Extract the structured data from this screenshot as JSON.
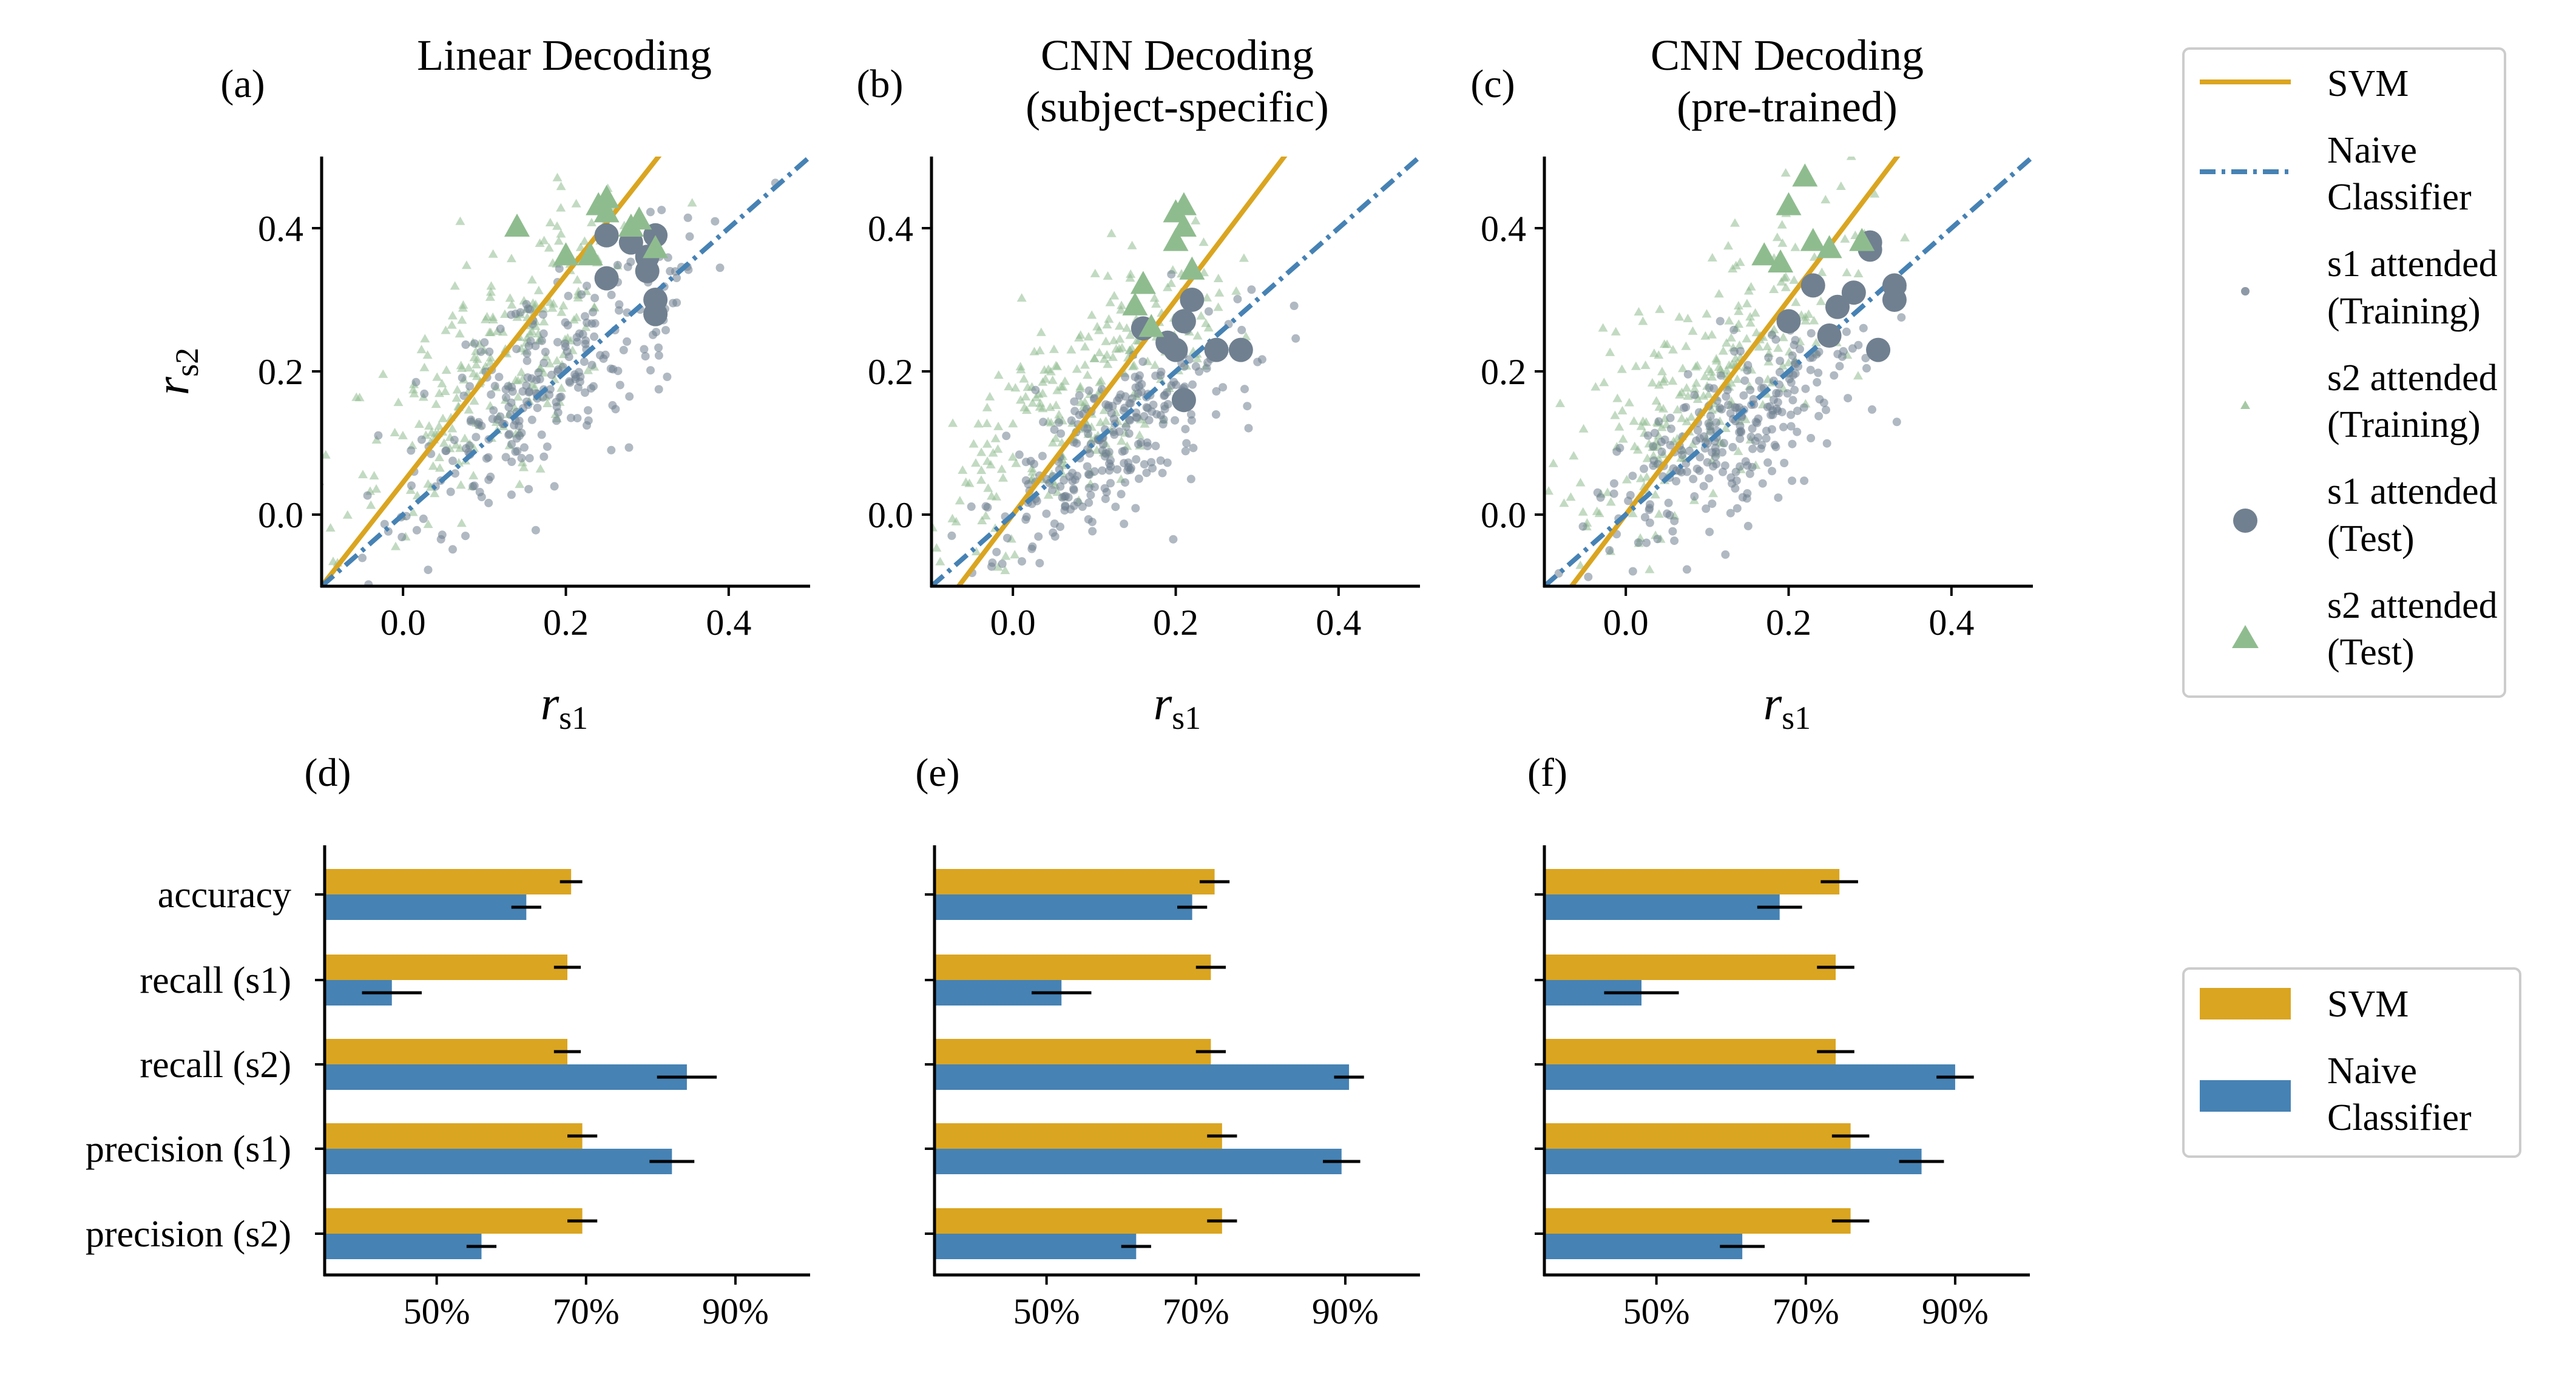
{
  "colors": {
    "svm": "#DAA520",
    "naive": "#4682B4",
    "s1_point": "#708090",
    "s2_point": "#8FBC8F",
    "axis": "#000000"
  },
  "scatter_axes": {
    "xlabel_main": "r",
    "xlabel_sub": "s1",
    "ylabel_main": "r",
    "ylabel_sub": "s2",
    "xlim": [
      -0.1,
      0.5
    ],
    "ylim": [
      -0.1,
      0.5
    ],
    "xticks": [
      "0.0",
      "0.2",
      "0.4"
    ],
    "yticks": [
      "0.0",
      "0.2",
      "0.4"
    ]
  },
  "bar_axes": {
    "categories": [
      "accuracy",
      "recall (s1)",
      "recall (s2)",
      "precision (s1)",
      "precision (s2)"
    ],
    "xticks": [
      "50%",
      "70%",
      "90%"
    ],
    "xlim": [
      0.35,
      1.0
    ]
  },
  "panels": [
    {
      "label": "(a)",
      "title_line1": "Linear Decoding",
      "title_line2": ""
    },
    {
      "label": "(b)",
      "title_line1": "CNN Decoding",
      "title_line2": "(subject-specific)"
    },
    {
      "label": "(c)",
      "title_line1": "CNN Decoding",
      "title_line2": "(pre-trained)"
    },
    {
      "label": "(d)"
    },
    {
      "label": "(e)"
    },
    {
      "label": "(f)"
    }
  ],
  "legend_scatter": [
    {
      "type": "line-solid",
      "line1": "SVM",
      "line2": ""
    },
    {
      "type": "line-dashdot",
      "line1": "Naive",
      "line2": "Classifier"
    },
    {
      "type": "s1-train",
      "line1": "s1 attended",
      "line2": "(Training)"
    },
    {
      "type": "s2-train",
      "line1": "s2 attended",
      "line2": "(Training)"
    },
    {
      "type": "s1-test",
      "line1": "s1 attended",
      "line2": "(Test)"
    },
    {
      "type": "s2-test",
      "line1": "s2 attended",
      "line2": "(Test)"
    }
  ],
  "legend_bar": [
    {
      "type": "svm",
      "line1": "SVM",
      "line2": ""
    },
    {
      "type": "naive",
      "line1": "Naive",
      "line2": "Classifier"
    }
  ],
  "chart_data": [
    {
      "type": "scatter",
      "panel": "(a)",
      "svm_line": {
        "slope": 1.45,
        "intercept": 0.045
      },
      "naive_line": {
        "slope": 1.0,
        "intercept": 0.0
      },
      "training_clouds": {
        "s1": {
          "count": 260,
          "center": [
            0.17,
            0.18
          ],
          "spread": [
            0.09,
            0.1
          ],
          "corr": 0.75
        },
        "s2": {
          "count": 260,
          "center": [
            0.12,
            0.22
          ],
          "spread": [
            0.09,
            0.12
          ],
          "corr": 0.75
        }
      },
      "test_s1": [
        [
          0.25,
          0.33
        ],
        [
          0.25,
          0.39
        ],
        [
          0.28,
          0.38
        ],
        [
          0.3,
          0.34
        ],
        [
          0.3,
          0.36
        ],
        [
          0.31,
          0.3
        ],
        [
          0.31,
          0.28
        ],
        [
          0.31,
          0.39
        ]
      ],
      "test_s2": [
        [
          0.14,
          0.4
        ],
        [
          0.2,
          0.36
        ],
        [
          0.23,
          0.36
        ],
        [
          0.24,
          0.43
        ],
        [
          0.25,
          0.42
        ],
        [
          0.25,
          0.44
        ],
        [
          0.28,
          0.4
        ],
        [
          0.29,
          0.41
        ],
        [
          0.31,
          0.37
        ]
      ]
    },
    {
      "type": "scatter",
      "panel": "(b)",
      "svm_line": {
        "slope": 1.5,
        "intercept": 0.0
      },
      "naive_line": {
        "slope": 1.0,
        "intercept": 0.0
      },
      "training_clouds": {
        "s1": {
          "count": 260,
          "center": [
            0.12,
            0.1
          ],
          "spread": [
            0.08,
            0.08
          ],
          "corr": 0.7
        },
        "s2": {
          "count": 260,
          "center": [
            0.08,
            0.16
          ],
          "spread": [
            0.08,
            0.1
          ],
          "corr": 0.7
        }
      },
      "test_s1": [
        [
          0.16,
          0.26
        ],
        [
          0.19,
          0.24
        ],
        [
          0.2,
          0.23
        ],
        [
          0.21,
          0.16
        ],
        [
          0.21,
          0.27
        ],
        [
          0.22,
          0.3
        ],
        [
          0.25,
          0.23
        ],
        [
          0.28,
          0.23
        ]
      ],
      "test_s2": [
        [
          0.15,
          0.29
        ],
        [
          0.16,
          0.32
        ],
        [
          0.17,
          0.26
        ],
        [
          0.2,
          0.38
        ],
        [
          0.2,
          0.42
        ],
        [
          0.21,
          0.4
        ],
        [
          0.21,
          0.43
        ],
        [
          0.22,
          0.34
        ]
      ]
    },
    {
      "type": "scatter",
      "panel": "(c)",
      "svm_line": {
        "slope": 1.5,
        "intercept": 0.0
      },
      "naive_line": {
        "slope": 1.0,
        "intercept": 0.0
      },
      "training_clouds": {
        "s1": {
          "count": 260,
          "center": [
            0.14,
            0.12
          ],
          "spread": [
            0.08,
            0.08
          ],
          "corr": 0.7
        },
        "s2": {
          "count": 260,
          "center": [
            0.1,
            0.18
          ],
          "spread": [
            0.08,
            0.1
          ],
          "corr": 0.7
        }
      },
      "test_s1": [
        [
          0.2,
          0.27
        ],
        [
          0.23,
          0.32
        ],
        [
          0.25,
          0.25
        ],
        [
          0.26,
          0.29
        ],
        [
          0.28,
          0.31
        ],
        [
          0.3,
          0.38
        ],
        [
          0.3,
          0.37
        ],
        [
          0.31,
          0.23
        ],
        [
          0.33,
          0.32
        ],
        [
          0.33,
          0.3
        ]
      ],
      "test_s2": [
        [
          0.17,
          0.36
        ],
        [
          0.19,
          0.35
        ],
        [
          0.2,
          0.43
        ],
        [
          0.22,
          0.47
        ],
        [
          0.23,
          0.38
        ],
        [
          0.25,
          0.37
        ],
        [
          0.29,
          0.38
        ]
      ]
    },
    {
      "type": "bar",
      "panel": "(d)",
      "categories": [
        "accuracy",
        "recall (s1)",
        "recall (s2)",
        "precision (s1)",
        "precision (s2)"
      ],
      "series": [
        {
          "name": "SVM",
          "values": [
            0.68,
            0.675,
            0.675,
            0.695,
            0.695
          ],
          "errors": [
            0.015,
            0.018,
            0.018,
            0.02,
            0.02
          ]
        },
        {
          "name": "Naive Classifier",
          "values": [
            0.62,
            0.44,
            0.835,
            0.815,
            0.56
          ],
          "errors": [
            0.02,
            0.04,
            0.04,
            0.03,
            0.02
          ]
        }
      ],
      "xlim": [
        0.35,
        1.0
      ]
    },
    {
      "type": "bar",
      "panel": "(e)",
      "categories": [
        "accuracy",
        "recall (s1)",
        "recall (s2)",
        "precision (s1)",
        "precision (s2)"
      ],
      "series": [
        {
          "name": "SVM",
          "values": [
            0.725,
            0.72,
            0.72,
            0.735,
            0.735
          ],
          "errors": [
            0.02,
            0.02,
            0.02,
            0.02,
            0.02
          ]
        },
        {
          "name": "Naive Classifier",
          "values": [
            0.695,
            0.52,
            0.905,
            0.895,
            0.62
          ],
          "errors": [
            0.02,
            0.04,
            0.02,
            0.025,
            0.02
          ]
        }
      ],
      "xlim": [
        0.35,
        1.0
      ]
    },
    {
      "type": "bar",
      "panel": "(f)",
      "categories": [
        "accuracy",
        "recall (s1)",
        "recall (s2)",
        "precision (s1)",
        "precision (s2)"
      ],
      "series": [
        {
          "name": "SVM",
          "values": [
            0.745,
            0.74,
            0.74,
            0.76,
            0.76
          ],
          "errors": [
            0.025,
            0.025,
            0.025,
            0.025,
            0.025
          ]
        },
        {
          "name": "Naive Classifier",
          "values": [
            0.665,
            0.48,
            0.9,
            0.855,
            0.615
          ],
          "errors": [
            0.03,
            0.05,
            0.025,
            0.03,
            0.03
          ]
        }
      ],
      "xlim": [
        0.35,
        1.0
      ]
    }
  ]
}
